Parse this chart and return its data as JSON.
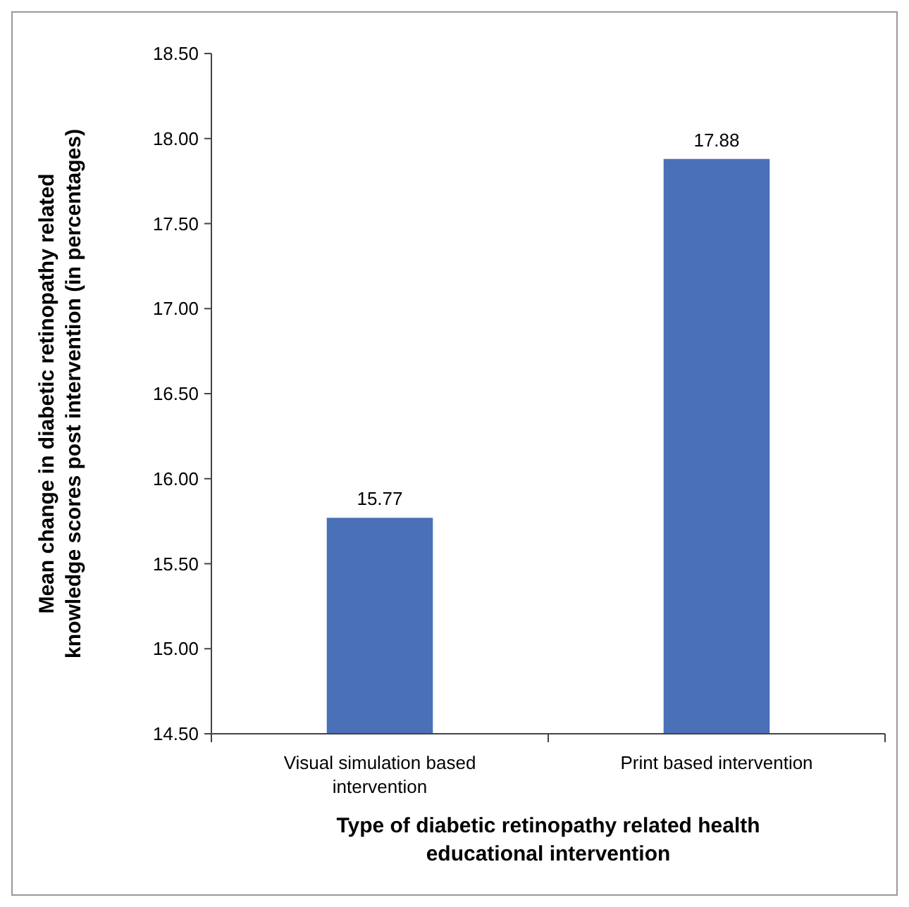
{
  "chart_data": {
    "type": "bar",
    "categories": [
      "Visual simulation based intervention",
      "Print based intervention"
    ],
    "values": [
      15.77,
      17.88
    ],
    "color": "#4a70b8",
    "ylim": [
      14.5,
      18.5
    ],
    "yticks": [
      {
        "value": 14.5,
        "label": "14.50"
      },
      {
        "value": 15,
        "label": "15.00"
      },
      {
        "value": 15.5,
        "label": "15.50"
      },
      {
        "value": 16,
        "label": "16.00"
      },
      {
        "value": 16.5,
        "label": "16.50"
      },
      {
        "value": 17,
        "label": "17.00"
      },
      {
        "value": 17.5,
        "label": "17.50"
      },
      {
        "value": 18,
        "label": "18.00"
      },
      {
        "value": 18.5,
        "label": "18.50"
      }
    ],
    "data_labels": true,
    "xlabel": "Type of diabetic retinopathy related health educational intervention",
    "ylabel": "Mean change in diabetic retinopathy related knowledge scores post intervention (in percentages)"
  }
}
